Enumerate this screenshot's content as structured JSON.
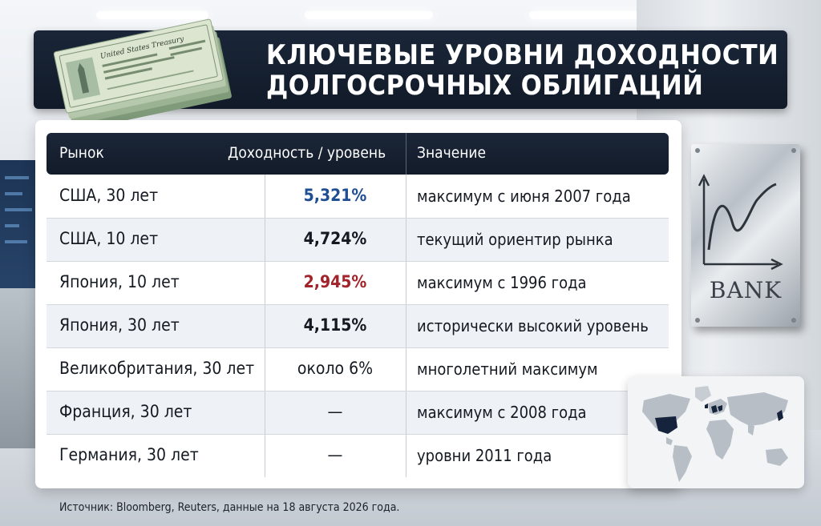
{
  "title": {
    "line1": "КЛЮЧЕВЫЕ УРОВНИ ДОХОДНОСТИ",
    "line2": "ДОЛГОСРОЧНЫХ ОБЛИГАЦИЙ"
  },
  "table": {
    "headers": {
      "market": "Рынок",
      "yield": "Доходность / уровень",
      "meaning": "Значение"
    },
    "rows": [
      {
        "market": "США, 30 лет",
        "yield": "5,321%",
        "meaning": "максимум с июня 2007 года",
        "yield_color": "#1f4e93",
        "bold": true
      },
      {
        "market": "США, 10 лет",
        "yield": "4,724%",
        "meaning": "текущий ориентир рынка",
        "yield_color": "#151a22",
        "bold": true
      },
      {
        "market": "Япония, 10 лет",
        "yield": "2,945%",
        "meaning": "максимум с 1996 года",
        "yield_color": "#a3232a",
        "bold": true
      },
      {
        "market": "Япония, 30 лет",
        "yield": "4,115%",
        "meaning": "исторически высокий уровень",
        "yield_color": "#151a22",
        "bold": true
      },
      {
        "market": "Великобритания, 30 лет",
        "yield": "около 6%",
        "meaning": "многолетний максимум",
        "yield_color": "#151a22",
        "bold": false
      },
      {
        "market": "Франция, 30 лет",
        "yield": "—",
        "meaning": "максимум с 2008 года",
        "yield_color": "#151a22",
        "bold": false
      },
      {
        "market": "Германия, 30 лет",
        "yield": "—",
        "meaning": "уровни 2011 года",
        "yield_color": "#151a22",
        "bold": false
      }
    ]
  },
  "source": "Источник: Bloomberg, Reuters, данные на 18 августа 2026 года.",
  "bank_plaque": {
    "label": "BANK",
    "icon": "growth-chart-icon"
  },
  "bills": {
    "icon": "treasury-bills-icon",
    "text": "United States Treasury"
  },
  "map": {
    "icon": "world-map-icon"
  },
  "colors": {
    "banner": "#141e2e",
    "accent_blue": "#1f4e93",
    "accent_red": "#a3232a"
  }
}
